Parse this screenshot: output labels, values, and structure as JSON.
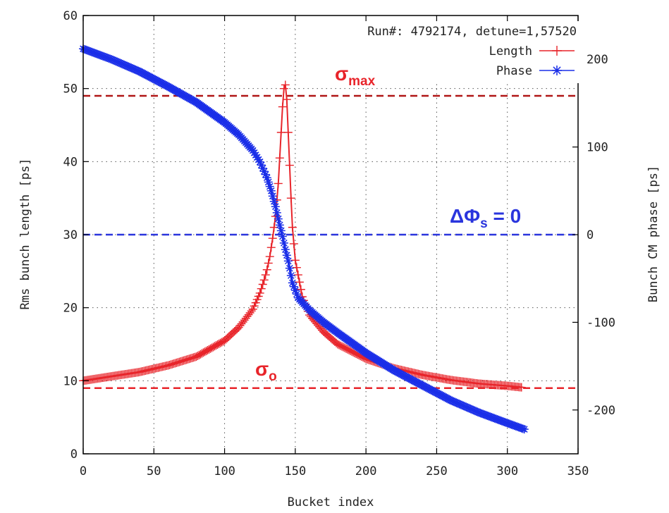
{
  "chart_data": {
    "type": "line",
    "xlabel": "Bucket index",
    "ylabel": "Rms bunch length [ps]",
    "y2label": "Bunch CM phase [ps]",
    "xlim": [
      0,
      350
    ],
    "ylim": [
      0,
      60
    ],
    "y2lim": [
      -250,
      250
    ],
    "x_ticks": [
      "0",
      "50",
      "100",
      "150",
      "200",
      "250",
      "300",
      "350"
    ],
    "y_ticks": [
      "0",
      "10",
      "20",
      "30",
      "40",
      "50",
      "60"
    ],
    "y2_ticks": [
      "-200",
      "-100",
      "0",
      "100",
      "200"
    ],
    "grid": true,
    "legend_position": "top-right",
    "legend_header": "Run#: 4792174, detune=1,57520",
    "series": [
      {
        "name": "Length",
        "axis": "left",
        "color": "#e8242a",
        "marker": "plus",
        "x": [
          0,
          20,
          40,
          60,
          80,
          100,
          110,
          120,
          125,
          128,
          130,
          132,
          134,
          136,
          138,
          139,
          140,
          141,
          142,
          143,
          144,
          145,
          146,
          147,
          148,
          150,
          152,
          155,
          160,
          170,
          180,
          200,
          220,
          240,
          260,
          280,
          300,
          310
        ],
        "values": [
          10,
          10.6,
          11.2,
          12.1,
          13.3,
          15.5,
          17.3,
          19.8,
          22,
          23.8,
          25.2,
          27,
          29.5,
          32.5,
          37,
          40.5,
          44,
          47.5,
          50,
          50.5,
          48.5,
          44,
          39.5,
          35,
          31,
          26.5,
          24.5,
          21.5,
          19,
          16.7,
          15,
          13,
          11.7,
          10.8,
          10.1,
          9.6,
          9.3,
          9.1
        ]
      },
      {
        "name": "Phase",
        "axis": "right",
        "color": "#1a2ee8",
        "marker": "star",
        "x": [
          0,
          20,
          40,
          60,
          80,
          100,
          110,
          120,
          125,
          130,
          133,
          136,
          139,
          141,
          143,
          145,
          148,
          152,
          160,
          170,
          180,
          200,
          220,
          240,
          260,
          280,
          300,
          312
        ],
        "values": [
          212,
          200,
          186,
          169,
          151,
          128,
          114,
          96,
          83,
          65,
          50,
          32,
          11,
          -2,
          -17,
          -30,
          -55,
          -72,
          -86,
          -100,
          -112,
          -135,
          -155,
          -172,
          -189,
          -203,
          -215,
          -222
        ]
      }
    ],
    "reference_lines": [
      {
        "axis": "left",
        "value": 49,
        "color": "#b01616",
        "label_main": "σ",
        "label_sub": "max"
      },
      {
        "axis": "left",
        "value": 9,
        "color": "#e8242a",
        "label_main": "σ",
        "label_sub": "o"
      },
      {
        "axis": "right",
        "value": 0,
        "color": "#2a35dd",
        "label_main": "ΔΦ",
        "label_sub": "s",
        "label_suffix": " = 0"
      }
    ]
  }
}
